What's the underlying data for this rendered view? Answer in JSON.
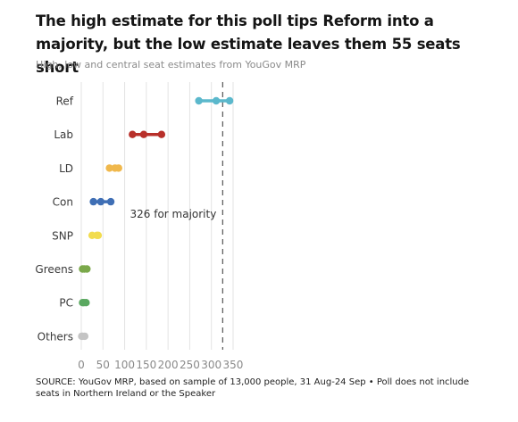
{
  "header": {
    "title": "The high estimate for this poll tips Reform into a majority, but the low estimate leaves them 55 seats short",
    "subtitle": "High, low and central seat estimates from YouGov MRP"
  },
  "footer": {
    "source": "SOURCE: YouGov MRP, based on sample of 13,000 people, 31 Aug-24 Sep • Poll does not include seats in Northern Ireland or the Speaker"
  },
  "chart_data": {
    "type": "dot-range",
    "categories": [
      "Ref",
      "Lab",
      "LD",
      "Con",
      "SNP",
      "Greens",
      "PC",
      "Others"
    ],
    "series": [
      {
        "category": "Ref",
        "low": 271,
        "central": 311,
        "high": 342,
        "color": "#5bb8cc"
      },
      {
        "category": "Lab",
        "low": 118,
        "central": 144,
        "high": 185,
        "color": "#b8302a"
      },
      {
        "category": "LD",
        "low": 65,
        "central": 78,
        "high": 86,
        "color": "#f0b84c"
      },
      {
        "category": "Con",
        "low": 28,
        "central": 45,
        "high": 68,
        "color": "#3f6fb5"
      },
      {
        "category": "SNP",
        "low": 25,
        "central": 36,
        "high": 39,
        "color": "#f2dc4e"
      },
      {
        "category": "Greens",
        "low": 3,
        "central": 7,
        "high": 13,
        "color": "#7aa84a"
      },
      {
        "category": "PC",
        "low": 3,
        "central": 6,
        "high": 11,
        "color": "#5aa860"
      },
      {
        "category": "Others",
        "low": 1,
        "central": 3,
        "high": 8,
        "color": "#c4c4c4"
      }
    ],
    "x_ticks": [
      "0",
      "50",
      "100",
      "150",
      "200",
      "250",
      "300",
      "350"
    ],
    "xlim": [
      0,
      370
    ],
    "grid": true,
    "majority_line": {
      "value": 326,
      "label": "326 for majority"
    }
  }
}
